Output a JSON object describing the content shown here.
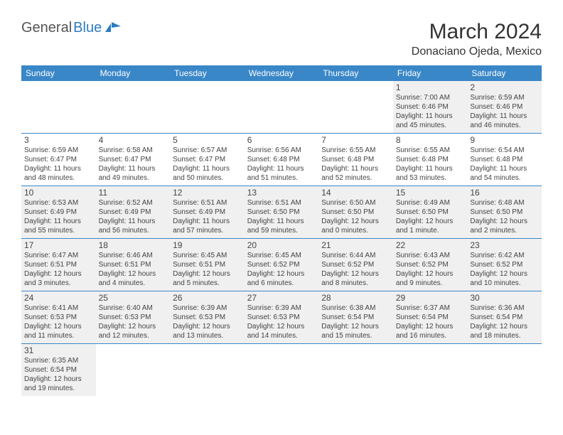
{
  "brand": {
    "part1": "General",
    "part2": "Blue"
  },
  "title": "March 2024",
  "location": "Donaciano Ojeda, Mexico",
  "colors": {
    "header_bg": "#3a87c8",
    "header_text": "#ffffff",
    "row_border": "#3a87c8",
    "cell_bg": "#f0f0f0",
    "brand_blue": "#2d7cc0"
  },
  "weekdays": [
    "Sunday",
    "Monday",
    "Tuesday",
    "Wednesday",
    "Thursday",
    "Friday",
    "Saturday"
  ],
  "weeks": [
    [
      null,
      null,
      null,
      null,
      null,
      {
        "day": "1",
        "sunrise": "Sunrise: 7:00 AM",
        "sunset": "Sunset: 6:46 PM",
        "daylight1": "Daylight: 11 hours",
        "daylight2": "and 45 minutes."
      },
      {
        "day": "2",
        "sunrise": "Sunrise: 6:59 AM",
        "sunset": "Sunset: 6:46 PM",
        "daylight1": "Daylight: 11 hours",
        "daylight2": "and 46 minutes."
      }
    ],
    [
      {
        "day": "3",
        "sunrise": "Sunrise: 6:59 AM",
        "sunset": "Sunset: 6:47 PM",
        "daylight1": "Daylight: 11 hours",
        "daylight2": "and 48 minutes."
      },
      {
        "day": "4",
        "sunrise": "Sunrise: 6:58 AM",
        "sunset": "Sunset: 6:47 PM",
        "daylight1": "Daylight: 11 hours",
        "daylight2": "and 49 minutes."
      },
      {
        "day": "5",
        "sunrise": "Sunrise: 6:57 AM",
        "sunset": "Sunset: 6:47 PM",
        "daylight1": "Daylight: 11 hours",
        "daylight2": "and 50 minutes."
      },
      {
        "day": "6",
        "sunrise": "Sunrise: 6:56 AM",
        "sunset": "Sunset: 6:48 PM",
        "daylight1": "Daylight: 11 hours",
        "daylight2": "and 51 minutes."
      },
      {
        "day": "7",
        "sunrise": "Sunrise: 6:55 AM",
        "sunset": "Sunset: 6:48 PM",
        "daylight1": "Daylight: 11 hours",
        "daylight2": "and 52 minutes."
      },
      {
        "day": "8",
        "sunrise": "Sunrise: 6:55 AM",
        "sunset": "Sunset: 6:48 PM",
        "daylight1": "Daylight: 11 hours",
        "daylight2": "and 53 minutes."
      },
      {
        "day": "9",
        "sunrise": "Sunrise: 6:54 AM",
        "sunset": "Sunset: 6:48 PM",
        "daylight1": "Daylight: 11 hours",
        "daylight2": "and 54 minutes."
      }
    ],
    [
      {
        "day": "10",
        "sunrise": "Sunrise: 6:53 AM",
        "sunset": "Sunset: 6:49 PM",
        "daylight1": "Daylight: 11 hours",
        "daylight2": "and 55 minutes."
      },
      {
        "day": "11",
        "sunrise": "Sunrise: 6:52 AM",
        "sunset": "Sunset: 6:49 PM",
        "daylight1": "Daylight: 11 hours",
        "daylight2": "and 56 minutes."
      },
      {
        "day": "12",
        "sunrise": "Sunrise: 6:51 AM",
        "sunset": "Sunset: 6:49 PM",
        "daylight1": "Daylight: 11 hours",
        "daylight2": "and 57 minutes."
      },
      {
        "day": "13",
        "sunrise": "Sunrise: 6:51 AM",
        "sunset": "Sunset: 6:50 PM",
        "daylight1": "Daylight: 11 hours",
        "daylight2": "and 59 minutes."
      },
      {
        "day": "14",
        "sunrise": "Sunrise: 6:50 AM",
        "sunset": "Sunset: 6:50 PM",
        "daylight1": "Daylight: 12 hours",
        "daylight2": "and 0 minutes."
      },
      {
        "day": "15",
        "sunrise": "Sunrise: 6:49 AM",
        "sunset": "Sunset: 6:50 PM",
        "daylight1": "Daylight: 12 hours",
        "daylight2": "and 1 minute."
      },
      {
        "day": "16",
        "sunrise": "Sunrise: 6:48 AM",
        "sunset": "Sunset: 6:50 PM",
        "daylight1": "Daylight: 12 hours",
        "daylight2": "and 2 minutes."
      }
    ],
    [
      {
        "day": "17",
        "sunrise": "Sunrise: 6:47 AM",
        "sunset": "Sunset: 6:51 PM",
        "daylight1": "Daylight: 12 hours",
        "daylight2": "and 3 minutes."
      },
      {
        "day": "18",
        "sunrise": "Sunrise: 6:46 AM",
        "sunset": "Sunset: 6:51 PM",
        "daylight1": "Daylight: 12 hours",
        "daylight2": "and 4 minutes."
      },
      {
        "day": "19",
        "sunrise": "Sunrise: 6:45 AM",
        "sunset": "Sunset: 6:51 PM",
        "daylight1": "Daylight: 12 hours",
        "daylight2": "and 5 minutes."
      },
      {
        "day": "20",
        "sunrise": "Sunrise: 6:45 AM",
        "sunset": "Sunset: 6:52 PM",
        "daylight1": "Daylight: 12 hours",
        "daylight2": "and 6 minutes."
      },
      {
        "day": "21",
        "sunrise": "Sunrise: 6:44 AM",
        "sunset": "Sunset: 6:52 PM",
        "daylight1": "Daylight: 12 hours",
        "daylight2": "and 8 minutes."
      },
      {
        "day": "22",
        "sunrise": "Sunrise: 6:43 AM",
        "sunset": "Sunset: 6:52 PM",
        "daylight1": "Daylight: 12 hours",
        "daylight2": "and 9 minutes."
      },
      {
        "day": "23",
        "sunrise": "Sunrise: 6:42 AM",
        "sunset": "Sunset: 6:52 PM",
        "daylight1": "Daylight: 12 hours",
        "daylight2": "and 10 minutes."
      }
    ],
    [
      {
        "day": "24",
        "sunrise": "Sunrise: 6:41 AM",
        "sunset": "Sunset: 6:53 PM",
        "daylight1": "Daylight: 12 hours",
        "daylight2": "and 11 minutes."
      },
      {
        "day": "25",
        "sunrise": "Sunrise: 6:40 AM",
        "sunset": "Sunset: 6:53 PM",
        "daylight1": "Daylight: 12 hours",
        "daylight2": "and 12 minutes."
      },
      {
        "day": "26",
        "sunrise": "Sunrise: 6:39 AM",
        "sunset": "Sunset: 6:53 PM",
        "daylight1": "Daylight: 12 hours",
        "daylight2": "and 13 minutes."
      },
      {
        "day": "27",
        "sunrise": "Sunrise: 6:39 AM",
        "sunset": "Sunset: 6:53 PM",
        "daylight1": "Daylight: 12 hours",
        "daylight2": "and 14 minutes."
      },
      {
        "day": "28",
        "sunrise": "Sunrise: 6:38 AM",
        "sunset": "Sunset: 6:54 PM",
        "daylight1": "Daylight: 12 hours",
        "daylight2": "and 15 minutes."
      },
      {
        "day": "29",
        "sunrise": "Sunrise: 6:37 AM",
        "sunset": "Sunset: 6:54 PM",
        "daylight1": "Daylight: 12 hours",
        "daylight2": "and 16 minutes."
      },
      {
        "day": "30",
        "sunrise": "Sunrise: 6:36 AM",
        "sunset": "Sunset: 6:54 PM",
        "daylight1": "Daylight: 12 hours",
        "daylight2": "and 18 minutes."
      }
    ],
    [
      {
        "day": "31",
        "sunrise": "Sunrise: 6:35 AM",
        "sunset": "Sunset: 6:54 PM",
        "daylight1": "Daylight: 12 hours",
        "daylight2": "and 19 minutes."
      },
      null,
      null,
      null,
      null,
      null,
      null
    ]
  ]
}
